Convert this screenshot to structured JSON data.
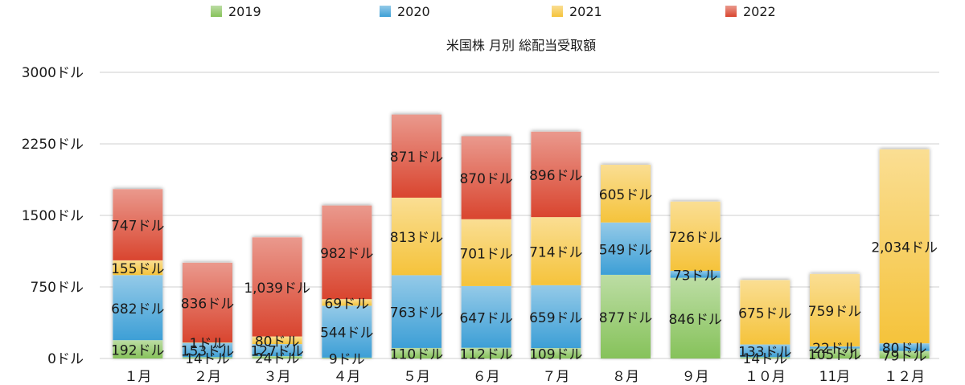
{
  "chart_data": {
    "type": "bar",
    "stacked": true,
    "title": "米国株 月別 総配当受取額",
    "categories": [
      "１月",
      "２月",
      "３月",
      "４月",
      "５月",
      "６月",
      "７月",
      "８月",
      "９月",
      "１０月",
      "11月",
      "１２月"
    ],
    "series": [
      {
        "name": "2019",
        "color": "#86c25a",
        "values": [
          192,
          14,
          24,
          9,
          110,
          112,
          109,
          877,
          846,
          14,
          105,
          79
        ],
        "labels": [
          "192ドル",
          "14ドル",
          "24ドル",
          "9ドル",
          "110ドル",
          "112ドル",
          "109ドル",
          "877ドル",
          "846ドル",
          "14ドル",
          "105ドル",
          "79ドル"
        ]
      },
      {
        "name": "2020",
        "color": "#3d9fd6",
        "values": [
          682,
          153,
          127,
          544,
          763,
          647,
          659,
          549,
          73,
          133,
          22,
          80
        ],
        "labels": [
          "682ドル",
          "153ドル",
          "127ドル",
          "544ドル",
          "763ドル",
          "647ドル",
          "659ドル",
          "549ドル",
          "73ドル",
          "133ドル",
          "22ドル",
          "80ドル"
        ]
      },
      {
        "name": "2021",
        "color": "#f5c33b",
        "values": [
          155,
          1,
          80,
          69,
          813,
          701,
          714,
          605,
          726,
          675,
          759,
          2034
        ],
        "labels": [
          "155ドル",
          "1ドル",
          "80ドル",
          "69ドル",
          "813ドル",
          "701ドル",
          "714ドル",
          "605ドル",
          "726ドル",
          "675ドル",
          "759ドル",
          "2,034ドル"
        ]
      },
      {
        "name": "2022",
        "color": "#d9452f",
        "values": [
          747,
          836,
          1039,
          982,
          871,
          870,
          896,
          0,
          0,
          0,
          0,
          0
        ],
        "labels": [
          "747ドル",
          "836ドル",
          "1,039ドル",
          "982ドル",
          "871ドル",
          "870ドル",
          "896ドル",
          "",
          "",
          "",
          "",
          ""
        ]
      }
    ],
    "yticks": [
      0,
      750,
      1500,
      2250,
      3000
    ],
    "ytick_labels": [
      "0ドル",
      "750ドル",
      "1500ドル",
      "2250ドル",
      "3000ドル"
    ],
    "ylim": [
      0,
      3000
    ],
    "grid": true,
    "legend_position": "top"
  }
}
